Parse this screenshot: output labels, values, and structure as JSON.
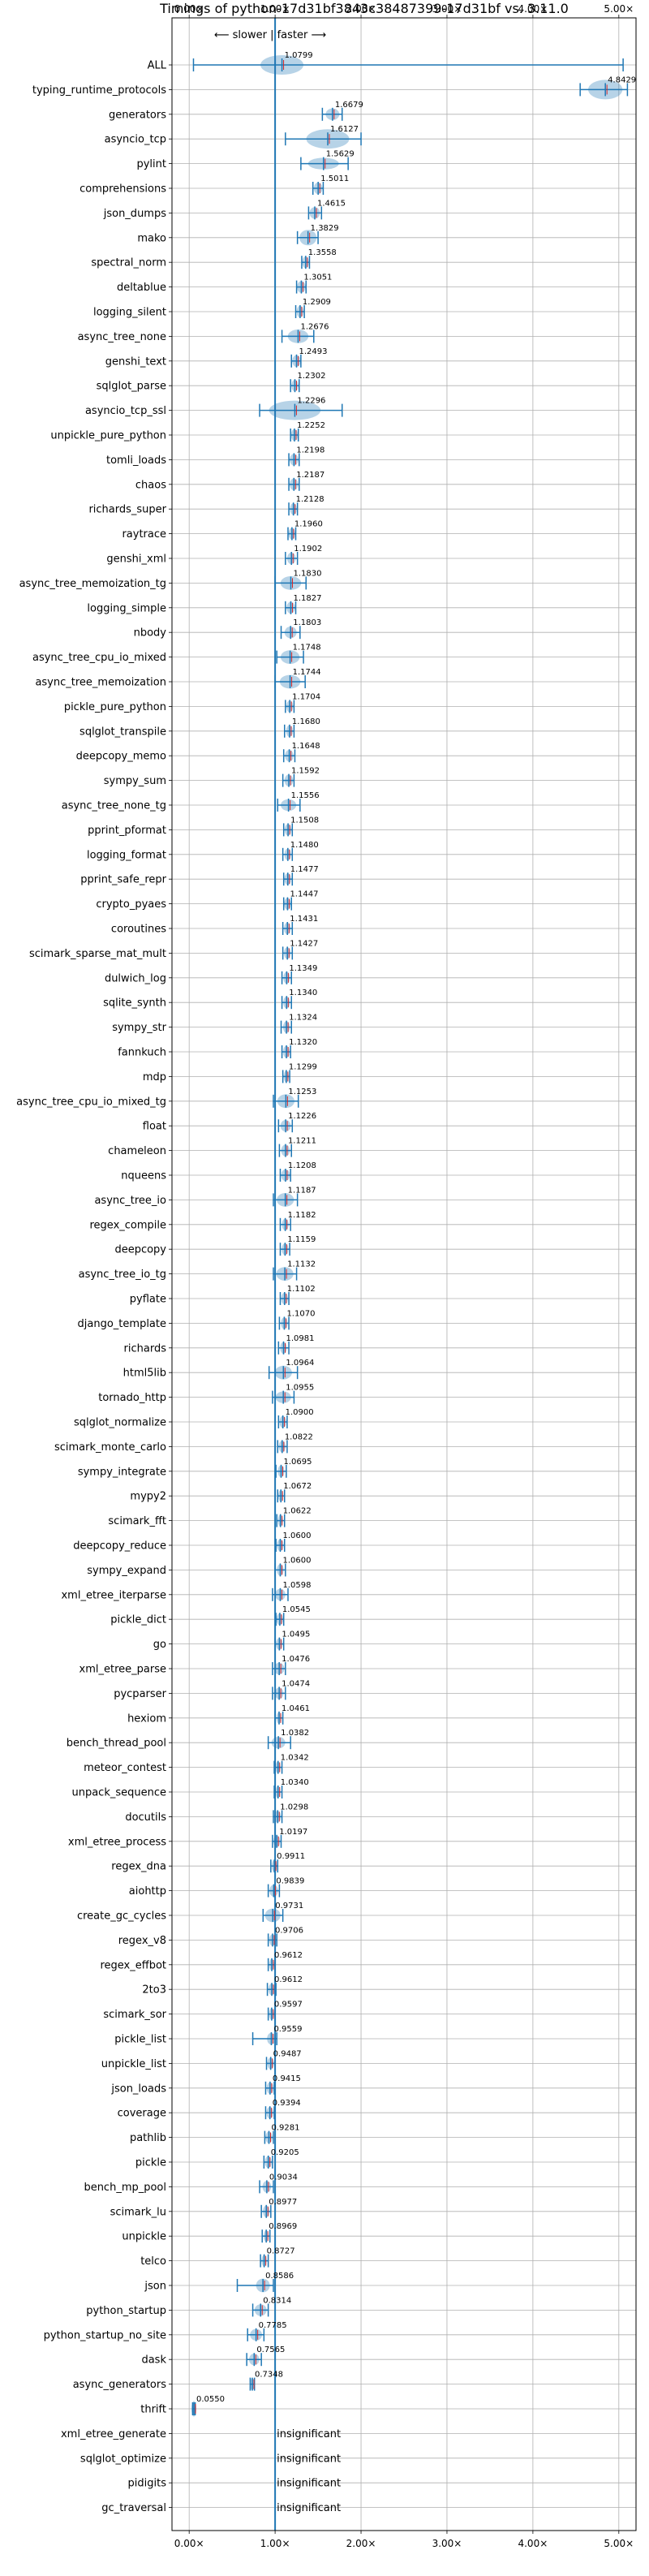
{
  "chart_data": {
    "type": "violin",
    "title": "Timings of python-17d31bf3843c38487399-17d31bf vs. 3.11.0",
    "direction_label": "⟵ slower | faster ⟶",
    "x_tick_labels": [
      "0.00×",
      "1.00×",
      "2.00×",
      "3.00×",
      "4.00×",
      "5.00×"
    ],
    "x_ticks": [
      0,
      1,
      2,
      3,
      4,
      5
    ],
    "xlim": [
      -0.2,
      5.2
    ],
    "reference_line": 1.0,
    "grid": true,
    "insignificant_label": "insignificant",
    "benchmarks": [
      {
        "name": "ALL",
        "value": 1.0799,
        "label": "1.0799",
        "lo": 0.05,
        "hi": 5.05,
        "spread": 0.25,
        "thick": 1.0
      },
      {
        "name": "typing_runtime_protocols",
        "value": 4.8429,
        "label": "4.8429",
        "lo": 4.55,
        "hi": 5.1,
        "spread": 0.2,
        "thick": 1.0
      },
      {
        "name": "generators",
        "value": 1.6679,
        "label": "1.6679",
        "lo": 1.55,
        "hi": 1.78,
        "spread": 0.08,
        "thick": 0.6
      },
      {
        "name": "asyncio_tcp",
        "value": 1.6127,
        "label": "1.6127",
        "lo": 1.12,
        "hi": 2.0,
        "spread": 0.25,
        "thick": 1.0
      },
      {
        "name": "pylint",
        "value": 1.5629,
        "label": "1.5629",
        "lo": 1.3,
        "hi": 1.85,
        "spread": 0.18,
        "thick": 0.6
      },
      {
        "name": "comprehensions",
        "value": 1.5011,
        "label": "1.5011",
        "lo": 1.44,
        "hi": 1.56,
        "spread": 0.05,
        "thick": 0.6
      },
      {
        "name": "json_dumps",
        "value": 1.4615,
        "label": "1.4615",
        "lo": 1.39,
        "hi": 1.54,
        "spread": 0.06,
        "thick": 0.6
      },
      {
        "name": "mako",
        "value": 1.3829,
        "label": "1.3829",
        "lo": 1.26,
        "hi": 1.5,
        "spread": 0.1,
        "thick": 0.8
      },
      {
        "name": "spectral_norm",
        "value": 1.3558,
        "label": "1.3558",
        "lo": 1.31,
        "hi": 1.4,
        "spread": 0.04,
        "thick": 0.6
      },
      {
        "name": "deltablue",
        "value": 1.3051,
        "label": "1.3051",
        "lo": 1.25,
        "hi": 1.36,
        "spread": 0.05,
        "thick": 0.6
      },
      {
        "name": "logging_silent",
        "value": 1.2909,
        "label": "1.2909",
        "lo": 1.24,
        "hi": 1.34,
        "spread": 0.04,
        "thick": 0.6
      },
      {
        "name": "async_tree_none",
        "value": 1.2676,
        "label": "1.2676",
        "lo": 1.08,
        "hi": 1.45,
        "spread": 0.12,
        "thick": 0.7
      },
      {
        "name": "genshi_text",
        "value": 1.2493,
        "label": "1.2493",
        "lo": 1.19,
        "hi": 1.3,
        "spread": 0.05,
        "thick": 0.6
      },
      {
        "name": "sqlglot_parse",
        "value": 1.2302,
        "label": "1.2302",
        "lo": 1.18,
        "hi": 1.28,
        "spread": 0.04,
        "thick": 0.6
      },
      {
        "name": "asyncio_tcp_ssl",
        "value": 1.2296,
        "label": "1.2296",
        "lo": 0.82,
        "hi": 1.78,
        "spread": 0.3,
        "thick": 1.0
      },
      {
        "name": "unpickle_pure_python",
        "value": 1.2252,
        "label": "1.2252",
        "lo": 1.18,
        "hi": 1.27,
        "spread": 0.04,
        "thick": 0.6
      },
      {
        "name": "tomli_loads",
        "value": 1.2198,
        "label": "1.2198",
        "lo": 1.16,
        "hi": 1.28,
        "spread": 0.05,
        "thick": 0.6
      },
      {
        "name": "chaos",
        "value": 1.2187,
        "label": "1.2187",
        "lo": 1.16,
        "hi": 1.28,
        "spread": 0.05,
        "thick": 0.6
      },
      {
        "name": "richards_super",
        "value": 1.2128,
        "label": "1.2128",
        "lo": 1.16,
        "hi": 1.26,
        "spread": 0.04,
        "thick": 0.6
      },
      {
        "name": "raytrace",
        "value": 1.196,
        "label": "1.1960",
        "lo": 1.15,
        "hi": 1.24,
        "spread": 0.04,
        "thick": 0.6
      },
      {
        "name": "genshi_xml",
        "value": 1.1902,
        "label": "1.1902",
        "lo": 1.12,
        "hi": 1.26,
        "spread": 0.05,
        "thick": 0.6
      },
      {
        "name": "async_tree_memoization_tg",
        "value": 1.183,
        "label": "1.1830",
        "lo": 1.0,
        "hi": 1.36,
        "spread": 0.12,
        "thick": 0.7
      },
      {
        "name": "logging_simple",
        "value": 1.1827,
        "label": "1.1827",
        "lo": 1.12,
        "hi": 1.24,
        "spread": 0.05,
        "thick": 0.6
      },
      {
        "name": "nbody",
        "value": 1.1803,
        "label": "1.1803",
        "lo": 1.07,
        "hi": 1.29,
        "spread": 0.07,
        "thick": 0.6
      },
      {
        "name": "async_tree_cpu_io_mixed",
        "value": 1.1748,
        "label": "1.1748",
        "lo": 1.02,
        "hi": 1.33,
        "spread": 0.11,
        "thick": 0.7
      },
      {
        "name": "async_tree_memoization",
        "value": 1.1744,
        "label": "1.1744",
        "lo": 1.0,
        "hi": 1.35,
        "spread": 0.12,
        "thick": 0.7
      },
      {
        "name": "pickle_pure_python",
        "value": 1.1704,
        "label": "1.1704",
        "lo": 1.12,
        "hi": 1.22,
        "spread": 0.04,
        "thick": 0.6
      },
      {
        "name": "sqlglot_transpile",
        "value": 1.168,
        "label": "1.1680",
        "lo": 1.11,
        "hi": 1.22,
        "spread": 0.04,
        "thick": 0.6
      },
      {
        "name": "deepcopy_memo",
        "value": 1.1648,
        "label": "1.1648",
        "lo": 1.1,
        "hi": 1.23,
        "spread": 0.05,
        "thick": 0.6
      },
      {
        "name": "sympy_sum",
        "value": 1.1592,
        "label": "1.1592",
        "lo": 1.09,
        "hi": 1.22,
        "spread": 0.05,
        "thick": 0.6
      },
      {
        "name": "async_tree_none_tg",
        "value": 1.1556,
        "label": "1.1556",
        "lo": 1.03,
        "hi": 1.29,
        "spread": 0.09,
        "thick": 0.6
      },
      {
        "name": "pprint_pformat",
        "value": 1.1508,
        "label": "1.1508",
        "lo": 1.1,
        "hi": 1.2,
        "spread": 0.04,
        "thick": 0.6
      },
      {
        "name": "logging_format",
        "value": 1.148,
        "label": "1.1480",
        "lo": 1.09,
        "hi": 1.2,
        "spread": 0.04,
        "thick": 0.6
      },
      {
        "name": "pprint_safe_repr",
        "value": 1.1477,
        "label": "1.1477",
        "lo": 1.1,
        "hi": 1.2,
        "spread": 0.04,
        "thick": 0.6
      },
      {
        "name": "crypto_pyaes",
        "value": 1.1447,
        "label": "1.1447",
        "lo": 1.1,
        "hi": 1.19,
        "spread": 0.04,
        "thick": 0.6
      },
      {
        "name": "coroutines",
        "value": 1.1431,
        "label": "1.1431",
        "lo": 1.09,
        "hi": 1.2,
        "spread": 0.04,
        "thick": 0.6
      },
      {
        "name": "scimark_sparse_mat_mult",
        "value": 1.1427,
        "label": "1.1427",
        "lo": 1.09,
        "hi": 1.2,
        "spread": 0.04,
        "thick": 0.6
      },
      {
        "name": "dulwich_log",
        "value": 1.1349,
        "label": "1.1349",
        "lo": 1.08,
        "hi": 1.19,
        "spread": 0.04,
        "thick": 0.6
      },
      {
        "name": "sqlite_synth",
        "value": 1.134,
        "label": "1.1340",
        "lo": 1.08,
        "hi": 1.19,
        "spread": 0.04,
        "thick": 0.6
      },
      {
        "name": "sympy_str",
        "value": 1.1324,
        "label": "1.1324",
        "lo": 1.07,
        "hi": 1.19,
        "spread": 0.04,
        "thick": 0.6
      },
      {
        "name": "fannkuch",
        "value": 1.132,
        "label": "1.1320",
        "lo": 1.08,
        "hi": 1.18,
        "spread": 0.04,
        "thick": 0.6
      },
      {
        "name": "mdp",
        "value": 1.1299,
        "label": "1.1299",
        "lo": 1.09,
        "hi": 1.17,
        "spread": 0.03,
        "thick": 0.6
      },
      {
        "name": "async_tree_cpu_io_mixed_tg",
        "value": 1.1253,
        "label": "1.1253",
        "lo": 0.98,
        "hi": 1.27,
        "spread": 0.1,
        "thick": 0.7
      },
      {
        "name": "float",
        "value": 1.1226,
        "label": "1.1226",
        "lo": 1.04,
        "hi": 1.2,
        "spread": 0.06,
        "thick": 0.6
      },
      {
        "name": "chameleon",
        "value": 1.1211,
        "label": "1.1211",
        "lo": 1.05,
        "hi": 1.19,
        "spread": 0.05,
        "thick": 0.6
      },
      {
        "name": "nqueens",
        "value": 1.1208,
        "label": "1.1208",
        "lo": 1.06,
        "hi": 1.18,
        "spread": 0.05,
        "thick": 0.6
      },
      {
        "name": "async_tree_io",
        "value": 1.1187,
        "label": "1.1187",
        "lo": 0.98,
        "hi": 1.26,
        "spread": 0.1,
        "thick": 0.7
      },
      {
        "name": "regex_compile",
        "value": 1.1182,
        "label": "1.1182",
        "lo": 1.06,
        "hi": 1.18,
        "spread": 0.04,
        "thick": 0.6
      },
      {
        "name": "deepcopy",
        "value": 1.1159,
        "label": "1.1159",
        "lo": 1.06,
        "hi": 1.17,
        "spread": 0.04,
        "thick": 0.6
      },
      {
        "name": "async_tree_io_tg",
        "value": 1.1132,
        "label": "1.1132",
        "lo": 0.98,
        "hi": 1.25,
        "spread": 0.1,
        "thick": 0.7
      },
      {
        "name": "pyflate",
        "value": 1.1102,
        "label": "1.1102",
        "lo": 1.06,
        "hi": 1.16,
        "spread": 0.04,
        "thick": 0.6
      },
      {
        "name": "django_template",
        "value": 1.107,
        "label": "1.1070",
        "lo": 1.05,
        "hi": 1.16,
        "spread": 0.04,
        "thick": 0.6
      },
      {
        "name": "richards",
        "value": 1.0981,
        "label": "1.0981",
        "lo": 1.04,
        "hi": 1.16,
        "spread": 0.04,
        "thick": 0.6
      },
      {
        "name": "html5lib",
        "value": 1.0964,
        "label": "1.0964",
        "lo": 0.93,
        "hi": 1.26,
        "spread": 0.1,
        "thick": 0.7
      },
      {
        "name": "tornado_http",
        "value": 1.0955,
        "label": "1.0955",
        "lo": 0.97,
        "hi": 1.22,
        "spread": 0.09,
        "thick": 0.6
      },
      {
        "name": "sqlglot_normalize",
        "value": 1.09,
        "label": "1.0900",
        "lo": 1.04,
        "hi": 1.14,
        "spread": 0.04,
        "thick": 0.6
      },
      {
        "name": "scimark_monte_carlo",
        "value": 1.0822,
        "label": "1.0822",
        "lo": 1.03,
        "hi": 1.14,
        "spread": 0.04,
        "thick": 0.6
      },
      {
        "name": "sympy_integrate",
        "value": 1.0695,
        "label": "1.0695",
        "lo": 1.01,
        "hi": 1.13,
        "spread": 0.04,
        "thick": 0.6
      },
      {
        "name": "mypy2",
        "value": 1.0672,
        "label": "1.0672",
        "lo": 1.03,
        "hi": 1.11,
        "spread": 0.03,
        "thick": 0.6
      },
      {
        "name": "scimark_fft",
        "value": 1.0622,
        "label": "1.0622",
        "lo": 1.02,
        "hi": 1.11,
        "spread": 0.03,
        "thick": 0.6
      },
      {
        "name": "deepcopy_reduce",
        "value": 1.06,
        "label": "1.0600",
        "lo": 1.01,
        "hi": 1.11,
        "spread": 0.04,
        "thick": 0.6
      },
      {
        "name": "sympy_expand",
        "value": 1.06,
        "label": "1.0600",
        "lo": 1.0,
        "hi": 1.12,
        "spread": 0.04,
        "thick": 0.6
      },
      {
        "name": "xml_etree_iterparse",
        "value": 1.0598,
        "label": "1.0598",
        "lo": 0.97,
        "hi": 1.15,
        "spread": 0.06,
        "thick": 0.6
      },
      {
        "name": "pickle_dict",
        "value": 1.0545,
        "label": "1.0545",
        "lo": 1.01,
        "hi": 1.1,
        "spread": 0.04,
        "thick": 0.6
      },
      {
        "name": "go",
        "value": 1.0495,
        "label": "1.0495",
        "lo": 1.0,
        "hi": 1.1,
        "spread": 0.04,
        "thick": 0.6
      },
      {
        "name": "xml_etree_parse",
        "value": 1.0476,
        "label": "1.0476",
        "lo": 0.97,
        "hi": 1.12,
        "spread": 0.06,
        "thick": 0.6
      },
      {
        "name": "pycparser",
        "value": 1.0474,
        "label": "1.0474",
        "lo": 0.97,
        "hi": 1.12,
        "spread": 0.05,
        "thick": 0.6
      },
      {
        "name": "hexiom",
        "value": 1.0461,
        "label": "1.0461",
        "lo": 1.0,
        "hi": 1.09,
        "spread": 0.03,
        "thick": 0.6
      },
      {
        "name": "bench_thread_pool",
        "value": 1.0382,
        "label": "1.0382",
        "lo": 0.92,
        "hi": 1.18,
        "spread": 0.08,
        "thick": 0.6
      },
      {
        "name": "meteor_contest",
        "value": 1.0342,
        "label": "1.0342",
        "lo": 0.99,
        "hi": 1.08,
        "spread": 0.03,
        "thick": 0.6
      },
      {
        "name": "unpack_sequence",
        "value": 1.034,
        "label": "1.0340",
        "lo": 0.99,
        "hi": 1.08,
        "spread": 0.03,
        "thick": 0.6
      },
      {
        "name": "docutils",
        "value": 1.0298,
        "label": "1.0298",
        "lo": 0.98,
        "hi": 1.08,
        "spread": 0.04,
        "thick": 0.6
      },
      {
        "name": "xml_etree_process",
        "value": 1.0197,
        "label": "1.0197",
        "lo": 0.97,
        "hi": 1.07,
        "spread": 0.04,
        "thick": 0.6
      },
      {
        "name": "regex_dna",
        "value": 0.9911,
        "label": "0.9911",
        "lo": 0.95,
        "hi": 1.03,
        "spread": 0.03,
        "thick": 0.6
      },
      {
        "name": "aiohttp",
        "value": 0.9839,
        "label": "0.9839",
        "lo": 0.92,
        "hi": 1.05,
        "spread": 0.05,
        "thick": 0.6
      },
      {
        "name": "create_gc_cycles",
        "value": 0.9731,
        "label": "0.9731",
        "lo": 0.86,
        "hi": 1.09,
        "spread": 0.09,
        "thick": 0.7
      },
      {
        "name": "regex_v8",
        "value": 0.9706,
        "label": "0.9706",
        "lo": 0.92,
        "hi": 1.02,
        "spread": 0.04,
        "thick": 0.6
      },
      {
        "name": "regex_effbot",
        "value": 0.9612,
        "label": "0.9612",
        "lo": 0.92,
        "hi": 1.0,
        "spread": 0.03,
        "thick": 0.6
      },
      {
        "name": "2to3",
        "value": 0.9612,
        "label": "0.9612",
        "lo": 0.91,
        "hi": 1.01,
        "spread": 0.04,
        "thick": 0.6
      },
      {
        "name": "scimark_sor",
        "value": 0.9597,
        "label": "0.9597",
        "lo": 0.92,
        "hi": 1.0,
        "spread": 0.03,
        "thick": 0.6
      },
      {
        "name": "pickle_list",
        "value": 0.9559,
        "label": "0.9559",
        "lo": 0.74,
        "hi": 1.02,
        "spread": 0.05,
        "thick": 0.6
      },
      {
        "name": "unpickle_list",
        "value": 0.9487,
        "label": "0.9487",
        "lo": 0.9,
        "hi": 1.0,
        "spread": 0.04,
        "thick": 0.6
      },
      {
        "name": "json_loads",
        "value": 0.9415,
        "label": "0.9415",
        "lo": 0.89,
        "hi": 0.99,
        "spread": 0.04,
        "thick": 0.6
      },
      {
        "name": "coverage",
        "value": 0.9394,
        "label": "0.9394",
        "lo": 0.89,
        "hi": 0.99,
        "spread": 0.04,
        "thick": 0.6
      },
      {
        "name": "pathlib",
        "value": 0.9281,
        "label": "0.9281",
        "lo": 0.88,
        "hi": 0.98,
        "spread": 0.04,
        "thick": 0.6
      },
      {
        "name": "pickle",
        "value": 0.9205,
        "label": "0.9205",
        "lo": 0.87,
        "hi": 0.97,
        "spread": 0.04,
        "thick": 0.6
      },
      {
        "name": "bench_mp_pool",
        "value": 0.9034,
        "label": "0.9034",
        "lo": 0.82,
        "hi": 0.98,
        "spread": 0.05,
        "thick": 0.6
      },
      {
        "name": "scimark_lu",
        "value": 0.8977,
        "label": "0.8977",
        "lo": 0.84,
        "hi": 0.95,
        "spread": 0.04,
        "thick": 0.6
      },
      {
        "name": "unpickle",
        "value": 0.8969,
        "label": "0.8969",
        "lo": 0.85,
        "hi": 0.94,
        "spread": 0.03,
        "thick": 0.6
      },
      {
        "name": "telco",
        "value": 0.8727,
        "label": "0.8727",
        "lo": 0.83,
        "hi": 0.92,
        "spread": 0.03,
        "thick": 0.6
      },
      {
        "name": "json",
        "value": 0.8586,
        "label": "0.8586",
        "lo": 0.56,
        "hi": 0.98,
        "spread": 0.08,
        "thick": 0.7
      },
      {
        "name": "python_startup",
        "value": 0.8314,
        "label": "0.8314",
        "lo": 0.74,
        "hi": 0.92,
        "spread": 0.07,
        "thick": 0.6
      },
      {
        "name": "python_startup_no_site",
        "value": 0.7785,
        "label": "0.7785",
        "lo": 0.68,
        "hi": 0.87,
        "spread": 0.07,
        "thick": 0.6
      },
      {
        "name": "dask",
        "value": 0.7565,
        "label": "0.7565",
        "lo": 0.67,
        "hi": 0.84,
        "spread": 0.06,
        "thick": 0.6
      },
      {
        "name": "async_generators",
        "value": 0.7348,
        "label": "0.7348",
        "lo": 0.71,
        "hi": 0.76,
        "spread": 0.02,
        "thick": 0.6
      },
      {
        "name": "thrift",
        "value": 0.055,
        "label": "0.0550",
        "lo": 0.04,
        "hi": 0.07,
        "spread": 0.01,
        "thick": 0.8
      },
      {
        "name": "xml_etree_generate",
        "insignificant": true
      },
      {
        "name": "sqlglot_optimize",
        "insignificant": true
      },
      {
        "name": "pidigits",
        "insignificant": true
      },
      {
        "name": "gc_traversal",
        "insignificant": true
      }
    ]
  }
}
